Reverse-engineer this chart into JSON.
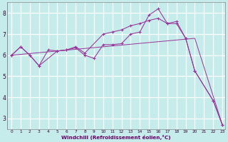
{
  "xlabel": "Windchill (Refroidissement éolien,°C)",
  "background_color": "#c5eceb",
  "line_color": "#993399",
  "grid_color": "#ffffff",
  "xlim_min": -0.5,
  "xlim_max": 23.3,
  "ylim_min": 2.5,
  "ylim_max": 8.5,
  "yticks": [
    3,
    4,
    5,
    6,
    7,
    8
  ],
  "xticks": [
    0,
    1,
    2,
    3,
    4,
    5,
    6,
    7,
    8,
    9,
    10,
    11,
    12,
    13,
    14,
    15,
    16,
    17,
    18,
    19,
    20,
    21,
    22,
    23
  ],
  "line1_x": [
    0,
    1,
    2,
    3,
    4,
    5,
    6,
    7,
    8,
    9,
    10,
    11,
    12,
    13,
    14,
    15,
    16,
    17,
    18,
    19,
    20,
    22,
    23
  ],
  "line1_y": [
    6.0,
    6.4,
    6.0,
    5.5,
    6.25,
    6.2,
    6.25,
    6.35,
    6.0,
    5.85,
    6.5,
    6.5,
    6.55,
    7.0,
    7.1,
    7.9,
    8.2,
    7.5,
    7.6,
    6.8,
    5.25,
    3.85,
    2.7
  ],
  "line2_x": [
    0,
    1,
    2,
    3,
    5,
    6,
    7,
    8,
    10,
    11,
    12,
    13,
    14,
    15,
    16,
    17,
    18,
    19,
    20,
    22,
    23
  ],
  "line2_y": [
    6.0,
    6.4,
    6.0,
    5.5,
    6.2,
    6.25,
    6.4,
    6.1,
    7.0,
    7.1,
    7.2,
    7.4,
    7.5,
    7.65,
    7.75,
    7.5,
    7.5,
    6.8,
    5.25,
    3.85,
    2.7
  ],
  "line4_x": [
    0,
    20,
    23
  ],
  "line4_y": [
    6.0,
    6.8,
    2.7
  ]
}
